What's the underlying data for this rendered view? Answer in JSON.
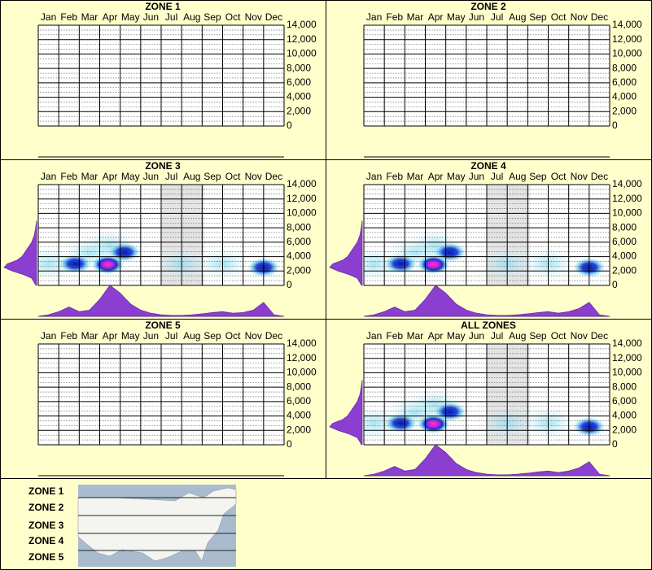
{
  "chart_data": [
    {
      "type": "heatmap",
      "title": "ZONE 1",
      "categories": [
        "Jan",
        "Feb",
        "Mar",
        "Apr",
        "May",
        "Jun",
        "Jul",
        "Aug",
        "Sep",
        "Oct",
        "Nov",
        "Dec"
      ],
      "xlim": [
        0,
        12
      ],
      "xticks": [
        0,
        1,
        2,
        3,
        4,
        5,
        6,
        7,
        8,
        9,
        10,
        11,
        12
      ],
      "ylim": [
        0,
        14000
      ],
      "yticks": [
        0,
        {
          "value": 2000,
          "label": "2,000"
        },
        {
          "value": 4000,
          "label": "4,000"
        },
        {
          "value": 6000,
          "label": "6,000"
        },
        {
          "value": 8000,
          "label": "8,000"
        },
        {
          "value": 10000,
          "label": "10,000"
        },
        {
          "value": 12000,
          "label": "12,000"
        },
        {
          "value": 14000,
          "label": "14,000"
        }
      ]
    },
    {
      "type": "heatmap",
      "title": "ZONE 2",
      "categories": [
        "Jan",
        "Feb",
        "Mar",
        "Apr",
        "May",
        "Jun",
        "Jul",
        "Aug",
        "Sep",
        "Oct",
        "Nov",
        "Dec"
      ],
      "xlim": [
        0,
        12
      ],
      "xticks": [
        0,
        1,
        2,
        3,
        4,
        5,
        6,
        7,
        8,
        9,
        10,
        11,
        12
      ],
      "ylim": [
        0,
        14000
      ],
      "yticks": [
        0,
        {
          "value": 2000,
          "label": "2,000"
        },
        {
          "value": 4000,
          "label": "4,000"
        },
        {
          "value": 6000,
          "label": "6,000"
        },
        {
          "value": 8000,
          "label": "8,000"
        },
        {
          "value": 10000,
          "label": "10,000"
        },
        {
          "value": 12000,
          "label": "12,000"
        },
        {
          "value": 14000,
          "label": "14,000"
        }
      ]
    },
    {
      "type": "heatmap",
      "title": "ZONE 3",
      "categories": [
        "Jan",
        "Feb",
        "Mar",
        "Apr",
        "May",
        "Jun",
        "Jul",
        "Aug",
        "Sep",
        "Oct",
        "Nov",
        "Dec"
      ],
      "xlim": [
        0,
        12
      ],
      "xticks": [
        0,
        1,
        2,
        3,
        4,
        5,
        6,
        7,
        8,
        9,
        10,
        11,
        12
      ],
      "ylim": [
        0,
        14000
      ],
      "yticks": [
        0,
        {
          "value": 2000,
          "label": "2,000"
        },
        {
          "value": 4000,
          "label": "4,000"
        },
        {
          "value": 6000,
          "label": "6,000"
        },
        {
          "value": 8000,
          "label": "8,000"
        },
        {
          "value": 10000,
          "label": "10,000"
        },
        {
          "value": 12000,
          "label": "12,000"
        },
        {
          "value": 14000,
          "label": "14,000"
        }
      ],
      "shaded": [
        6,
        8.1
      ],
      "hotspots": {
        "x": [
          0.5,
          2.5,
          3.5,
          7,
          9,
          1.8,
          3.4,
          4.2,
          11.0
        ],
        "y": [
          3000,
          4500,
          5500,
          3000,
          3000,
          3000,
          2900,
          4600,
          2500
        ],
        "weight": [
          0.2,
          0.25,
          0.25,
          0.15,
          0.15,
          0.6,
          1.0,
          0.7,
          0.6
        ]
      },
      "x_density": {
        "x": [
          0,
          0.5,
          1,
          1.5,
          2,
          2.5,
          3,
          3.5,
          4,
          4.5,
          5,
          5.5,
          6,
          6.5,
          7,
          7.5,
          8,
          8.5,
          9,
          9.5,
          10,
          10.5,
          11,
          11.5,
          12
        ],
        "values": [
          0,
          0.05,
          0.15,
          0.3,
          0.15,
          0.2,
          0.55,
          1.0,
          0.75,
          0.4,
          0.2,
          0.1,
          0.05,
          0.03,
          0.03,
          0.05,
          0.08,
          0.12,
          0.15,
          0.1,
          0.12,
          0.2,
          0.45,
          0.05,
          0
        ]
      },
      "y_density": {
        "y": [
          0,
          1000,
          1500,
          2000,
          2500,
          3000,
          3500,
          4000,
          5000,
          6000,
          7000,
          8000,
          9000
        ],
        "values": [
          0.02,
          0.15,
          0.4,
          0.75,
          1,
          0.9,
          0.6,
          0.45,
          0.3,
          0.15,
          0.07,
          0.03,
          0
        ]
      }
    },
    {
      "type": "heatmap",
      "title": "ZONE 4",
      "categories": [
        "Jan",
        "Feb",
        "Mar",
        "Apr",
        "May",
        "Jun",
        "Jul",
        "Aug",
        "Sep",
        "Oct",
        "Nov",
        "Dec"
      ],
      "xlim": [
        0,
        12
      ],
      "xticks": [
        0,
        1,
        2,
        3,
        4,
        5,
        6,
        7,
        8,
        9,
        10,
        11,
        12
      ],
      "ylim": [
        0,
        14000
      ],
      "yticks": [
        0,
        {
          "value": 2000,
          "label": "2,000"
        },
        {
          "value": 4000,
          "label": "4,000"
        },
        {
          "value": 6000,
          "label": "6,000"
        },
        {
          "value": 8000,
          "label": "8,000"
        },
        {
          "value": 10000,
          "label": "10,000"
        },
        {
          "value": 12000,
          "label": "12,000"
        },
        {
          "value": 14000,
          "label": "14,000"
        }
      ],
      "shaded": [
        6,
        8.1
      ],
      "hotspots": {
        "x": [
          0.5,
          2.5,
          3.5,
          7,
          9,
          1.8,
          3.4,
          4.2,
          11.0
        ],
        "y": [
          3000,
          4500,
          5500,
          3000,
          3000,
          3000,
          2900,
          4600,
          2500
        ],
        "weight": [
          0.2,
          0.3,
          0.3,
          0.15,
          0.15,
          0.6,
          0.95,
          0.7,
          0.65
        ]
      },
      "x_density": {
        "x": [
          0,
          0.5,
          1,
          1.5,
          2,
          2.5,
          3,
          3.5,
          4,
          4.5,
          5,
          5.5,
          6,
          6.5,
          7,
          7.5,
          8,
          8.5,
          9,
          9.5,
          10,
          10.5,
          11,
          11.5,
          12
        ],
        "values": [
          0,
          0.05,
          0.15,
          0.3,
          0.15,
          0.2,
          0.55,
          1.0,
          0.75,
          0.4,
          0.2,
          0.1,
          0.05,
          0.03,
          0.03,
          0.05,
          0.08,
          0.12,
          0.15,
          0.1,
          0.15,
          0.25,
          0.45,
          0.05,
          0
        ]
      },
      "y_density": {
        "y": [
          0,
          1000,
          1500,
          2000,
          2500,
          3000,
          3500,
          4000,
          5000,
          6000,
          7000,
          8000,
          9000
        ],
        "values": [
          0.02,
          0.15,
          0.4,
          0.75,
          1,
          0.9,
          0.6,
          0.45,
          0.3,
          0.15,
          0.07,
          0.03,
          0
        ]
      }
    },
    {
      "type": "heatmap",
      "title": "ZONE 5",
      "categories": [
        "Jan",
        "Feb",
        "Mar",
        "Apr",
        "May",
        "Jun",
        "Jul",
        "Aug",
        "Sep",
        "Oct",
        "Nov",
        "Dec"
      ],
      "xlim": [
        0,
        12
      ],
      "xticks": [
        0,
        1,
        2,
        3,
        4,
        5,
        6,
        7,
        8,
        9,
        10,
        11,
        12
      ],
      "ylim": [
        0,
        14000
      ],
      "yticks": [
        0,
        {
          "value": 2000,
          "label": "2,000"
        },
        {
          "value": 4000,
          "label": "4,000"
        },
        {
          "value": 6000,
          "label": "6,000"
        },
        {
          "value": 8000,
          "label": "8,000"
        },
        {
          "value": 10000,
          "label": "10,000"
        },
        {
          "value": 12000,
          "label": "12,000"
        },
        {
          "value": 14000,
          "label": "14,000"
        }
      ]
    },
    {
      "type": "heatmap",
      "title": "ALL ZONES",
      "categories": [
        "Jan",
        "Feb",
        "Mar",
        "Apr",
        "May",
        "Jun",
        "Jul",
        "Aug",
        "Sep",
        "Oct",
        "Nov",
        "Dec"
      ],
      "xlim": [
        0,
        12
      ],
      "xticks": [
        0,
        1,
        2,
        3,
        4,
        5,
        6,
        7,
        8,
        9,
        10,
        11,
        12
      ],
      "ylim": [
        0,
        14000
      ],
      "yticks": [
        0,
        {
          "value": 2000,
          "label": "2,000"
        },
        {
          "value": 4000,
          "label": "4,000"
        },
        {
          "value": 6000,
          "label": "6,000"
        },
        {
          "value": 8000,
          "label": "8,000"
        },
        {
          "value": 10000,
          "label": "10,000"
        },
        {
          "value": 12000,
          "label": "12,000"
        },
        {
          "value": 14000,
          "label": "14,000"
        }
      ],
      "shaded": [
        6,
        8.1
      ],
      "hotspots": {
        "x": [
          0.5,
          2.5,
          3.5,
          7,
          9,
          1.8,
          3.4,
          4.2,
          11.0
        ],
        "y": [
          3000,
          4500,
          5500,
          3000,
          3000,
          3000,
          2900,
          4600,
          2500
        ],
        "weight": [
          0.2,
          0.3,
          0.3,
          0.15,
          0.15,
          0.6,
          0.95,
          0.7,
          0.65
        ]
      },
      "x_density": {
        "x": [
          0,
          0.5,
          1,
          1.5,
          2,
          2.5,
          3,
          3.5,
          4,
          4.5,
          5,
          5.5,
          6,
          6.5,
          7,
          7.5,
          8,
          8.5,
          9,
          9.5,
          10,
          10.5,
          11,
          11.5,
          12
        ],
        "values": [
          0,
          0.05,
          0.15,
          0.3,
          0.15,
          0.2,
          0.55,
          1.0,
          0.75,
          0.4,
          0.2,
          0.1,
          0.05,
          0.03,
          0.03,
          0.05,
          0.08,
          0.12,
          0.15,
          0.1,
          0.15,
          0.25,
          0.45,
          0.05,
          0
        ]
      },
      "y_density": {
        "y": [
          0,
          1000,
          1500,
          2000,
          2500,
          3000,
          3500,
          4000,
          5000,
          6000,
          7000,
          8000,
          9000
        ],
        "values": [
          0.02,
          0.15,
          0.4,
          0.75,
          1,
          0.9,
          0.6,
          0.45,
          0.3,
          0.15,
          0.07,
          0.03,
          0
        ]
      }
    }
  ],
  "legend": {
    "zones": [
      "ZONE 1",
      "ZONE 2",
      "ZONE 3",
      "ZONE 4",
      "ZONE 5"
    ]
  }
}
